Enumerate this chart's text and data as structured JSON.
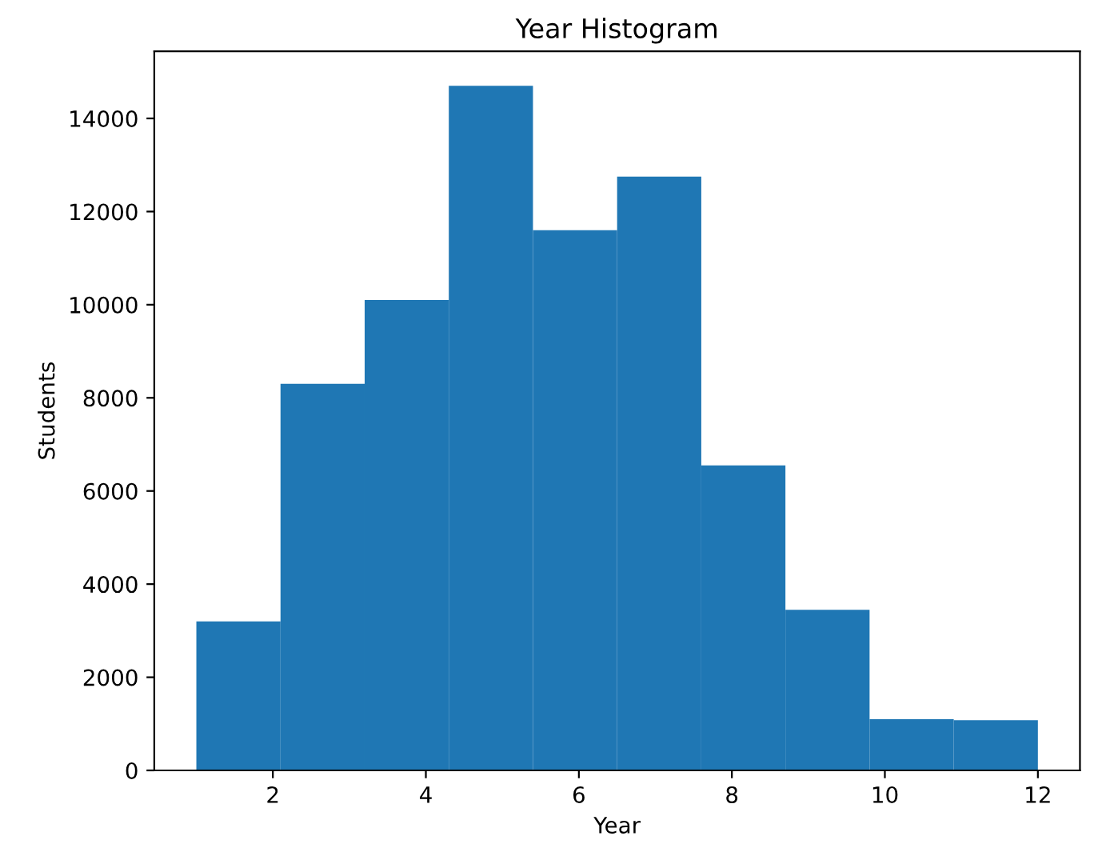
{
  "chart_data": {
    "type": "histogram",
    "title": "Year Histogram",
    "xlabel": "Year",
    "ylabel": "Students",
    "bins": [
      1,
      2.1,
      3.2,
      4.3,
      5.4,
      6.5,
      7.6,
      8.7,
      9.8,
      10.9,
      12
    ],
    "values": [
      3200,
      8300,
      10100,
      14700,
      11600,
      12750,
      6550,
      3450,
      1100,
      1080
    ],
    "color": "#1f77b4",
    "xlim": [
      0.45,
      12.55
    ],
    "ylim": [
      0,
      15440
    ],
    "xticks": [
      2,
      4,
      6,
      8,
      10,
      12
    ],
    "yticks": [
      0,
      2000,
      4000,
      6000,
      8000,
      10000,
      12000,
      14000
    ],
    "grid": false
  }
}
